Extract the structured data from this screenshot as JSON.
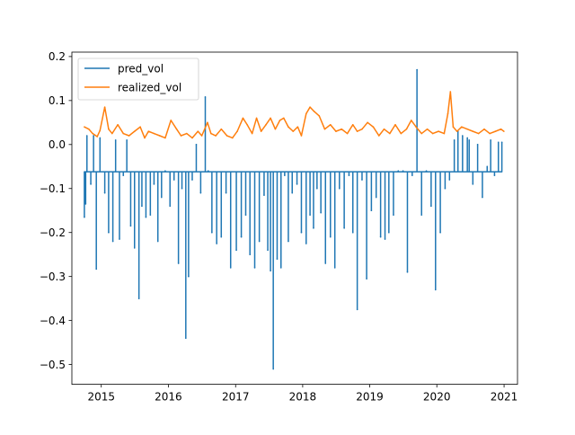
{
  "chart_data": {
    "type": "line",
    "title": "",
    "xlabel": "",
    "ylabel": "",
    "x_range": [
      "2014-07-25",
      "2021-03-15"
    ],
    "ylim": [
      -0.545,
      0.21
    ],
    "x_tick_labels": [
      "2015",
      "2016",
      "2017",
      "2018",
      "2019",
      "2020",
      "2021"
    ],
    "y_ticks": [
      0.2,
      0.1,
      0.0,
      -0.1,
      -0.2,
      -0.3,
      -0.4,
      -0.5
    ],
    "y_tick_labels": [
      "0.2",
      "0.1",
      "0.0",
      "−0.1",
      "−0.2",
      "−0.3",
      "−0.4",
      "−0.5"
    ],
    "grid": false,
    "legend_position": "upper-left",
    "series": [
      {
        "name": "pred_vol",
        "color": "#1f77b4",
        "baseline": -0.062,
        "x": [
          "2014-10-01",
          "2014-10-08",
          "2014-10-15",
          "2014-11-05",
          "2014-11-20",
          "2014-12-05",
          "2014-12-25",
          "2015-01-20",
          "2015-02-10",
          "2015-03-05",
          "2015-03-20",
          "2015-04-10",
          "2015-05-01",
          "2015-05-20",
          "2015-06-10",
          "2015-07-01",
          "2015-07-25",
          "2015-08-10",
          "2015-09-01",
          "2015-09-25",
          "2015-10-15",
          "2015-11-05",
          "2015-11-25",
          "2015-12-15",
          "2016-01-10",
          "2016-02-01",
          "2016-02-25",
          "2016-03-15",
          "2016-04-05",
          "2016-04-20",
          "2016-05-10",
          "2016-06-01",
          "2016-06-25",
          "2016-07-20",
          "2016-08-05",
          "2016-08-25",
          "2016-09-20",
          "2016-10-15",
          "2016-11-10",
          "2016-12-05",
          "2017-01-05",
          "2017-02-01",
          "2017-02-25",
          "2017-03-20",
          "2017-04-15",
          "2017-05-10",
          "2017-06-05",
          "2017-06-25",
          "2017-07-10",
          "2017-07-25",
          "2017-08-15",
          "2017-09-05",
          "2017-09-25",
          "2017-10-15",
          "2017-11-05",
          "2017-12-01",
          "2017-12-25",
          "2018-01-20",
          "2018-02-10",
          "2018-03-01",
          "2018-03-20",
          "2018-04-10",
          "2018-05-05",
          "2018-06-01",
          "2018-06-25",
          "2018-07-20",
          "2018-08-15",
          "2018-09-10",
          "2018-10-01",
          "2018-10-25",
          "2018-11-20",
          "2018-12-15",
          "2019-01-10",
          "2019-02-05",
          "2019-03-01",
          "2019-03-25",
          "2019-04-15",
          "2019-05-10",
          "2019-06-05",
          "2019-07-01",
          "2019-07-25",
          "2019-08-20",
          "2019-09-15",
          "2019-10-10",
          "2019-11-05",
          "2019-12-01",
          "2019-12-25",
          "2020-01-20",
          "2020-02-15",
          "2020-03-10",
          "2020-04-05",
          "2020-04-25",
          "2020-05-20",
          "2020-06-15",
          "2020-06-25",
          "2020-07-15",
          "2020-08-10",
          "2020-09-05",
          "2020-10-01",
          "2020-10-20",
          "2020-11-10",
          "2020-12-01",
          "2020-12-20"
        ],
        "values": [
          -0.165,
          -0.135,
          0.02,
          -0.09,
          0.02,
          -0.283,
          0.015,
          -0.11,
          -0.2,
          -0.22,
          0.01,
          -0.215,
          -0.07,
          0.01,
          -0.185,
          -0.235,
          -0.35,
          -0.14,
          -0.165,
          -0.16,
          -0.09,
          -0.22,
          -0.12,
          -0.06,
          -0.14,
          -0.08,
          -0.27,
          -0.1,
          -0.44,
          -0.3,
          -0.08,
          0.0,
          -0.11,
          0.108,
          -0.06,
          -0.2,
          -0.225,
          -0.21,
          -0.11,
          -0.28,
          -0.24,
          -0.21,
          -0.16,
          -0.25,
          -0.28,
          -0.22,
          -0.115,
          -0.24,
          -0.287,
          -0.51,
          -0.26,
          -0.28,
          -0.07,
          -0.22,
          -0.11,
          -0.09,
          -0.2,
          -0.225,
          -0.16,
          -0.19,
          -0.1,
          -0.155,
          -0.27,
          -0.21,
          -0.28,
          -0.1,
          -0.19,
          -0.07,
          -0.2,
          -0.375,
          -0.08,
          -0.305,
          -0.15,
          -0.12,
          -0.21,
          -0.215,
          -0.2,
          -0.16,
          -0.06,
          -0.06,
          -0.29,
          -0.07,
          0.17,
          -0.16,
          -0.06,
          -0.14,
          -0.33,
          -0.2,
          -0.1,
          -0.08,
          0.01,
          0.03,
          0.02,
          0.015,
          0.01,
          -0.09,
          0.0,
          -0.12,
          -0.05,
          0.01,
          -0.07,
          0.005,
          0.005
        ]
      },
      {
        "name": "realized_vol",
        "color": "#ff7f0e",
        "x": [
          "2014-10-01",
          "2014-10-25",
          "2014-11-15",
          "2014-12-10",
          "2014-12-25",
          "2015-01-20",
          "2015-02-10",
          "2015-03-01",
          "2015-04-01",
          "2015-05-01",
          "2015-06-01",
          "2015-07-01",
          "2015-08-01",
          "2015-08-25",
          "2015-09-15",
          "2015-10-15",
          "2015-11-15",
          "2015-12-15",
          "2016-01-15",
          "2016-02-15",
          "2016-03-10",
          "2016-04-10",
          "2016-05-10",
          "2016-06-10",
          "2016-07-01",
          "2016-08-01",
          "2016-08-20",
          "2016-09-15",
          "2016-10-15",
          "2016-11-15",
          "2016-12-15",
          "2017-01-10",
          "2017-02-10",
          "2017-03-05",
          "2017-04-01",
          "2017-04-25",
          "2017-05-20",
          "2017-06-15",
          "2017-07-10",
          "2017-08-05",
          "2017-08-30",
          "2017-09-20",
          "2017-10-15",
          "2017-11-10",
          "2017-12-05",
          "2017-12-25",
          "2018-01-20",
          "2018-02-10",
          "2018-03-05",
          "2018-04-01",
          "2018-05-01",
          "2018-06-01",
          "2018-07-01",
          "2018-08-01",
          "2018-09-01",
          "2018-10-01",
          "2018-10-25",
          "2018-11-20",
          "2018-12-20",
          "2019-01-20",
          "2019-02-20",
          "2019-03-20",
          "2019-04-20",
          "2019-05-20",
          "2019-06-20",
          "2019-07-20",
          "2019-08-15",
          "2019-09-10",
          "2019-10-10",
          "2019-11-10",
          "2019-12-10",
          "2020-01-10",
          "2020-02-10",
          "2020-03-01",
          "2020-03-15",
          "2020-03-30",
          "2020-04-20",
          "2020-05-15",
          "2020-06-15",
          "2020-07-15",
          "2020-08-15",
          "2020-09-15",
          "2020-10-15",
          "2020-11-15",
          "2020-12-15",
          "2020-12-31"
        ],
        "values": [
          0.04,
          0.035,
          0.025,
          0.018,
          0.032,
          0.085,
          0.035,
          0.025,
          0.045,
          0.025,
          0.02,
          0.03,
          0.04,
          0.015,
          0.03,
          0.025,
          0.02,
          0.015,
          0.055,
          0.035,
          0.02,
          0.025,
          0.015,
          0.03,
          0.02,
          0.05,
          0.025,
          0.02,
          0.035,
          0.02,
          0.015,
          0.03,
          0.06,
          0.045,
          0.025,
          0.06,
          0.03,
          0.045,
          0.06,
          0.035,
          0.055,
          0.06,
          0.04,
          0.03,
          0.04,
          0.02,
          0.07,
          0.085,
          0.075,
          0.065,
          0.035,
          0.045,
          0.03,
          0.035,
          0.025,
          0.045,
          0.03,
          0.035,
          0.05,
          0.04,
          0.02,
          0.035,
          0.025,
          0.045,
          0.025,
          0.035,
          0.055,
          0.04,
          0.025,
          0.035,
          0.025,
          0.03,
          0.025,
          0.07,
          0.12,
          0.04,
          0.03,
          0.04,
          0.035,
          0.03,
          0.025,
          0.035,
          0.025,
          0.03,
          0.035,
          0.03
        ]
      }
    ]
  }
}
